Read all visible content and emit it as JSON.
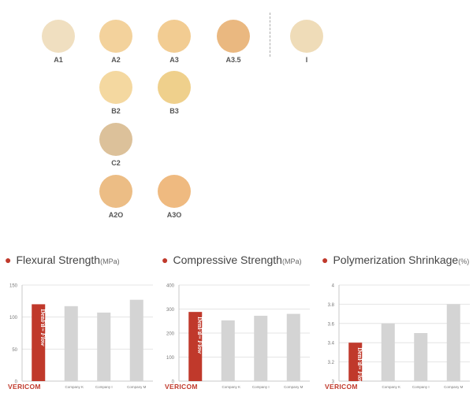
{
  "shades": [
    {
      "label": "A1",
      "color": "#f0dfc0",
      "col": 0,
      "row": 0
    },
    {
      "label": "A2",
      "color": "#f3d29c",
      "col": 1,
      "row": 0
    },
    {
      "label": "A3",
      "color": "#f2cc92",
      "col": 2,
      "row": 0
    },
    {
      "label": "A3.5",
      "color": "#eab880",
      "col": 3,
      "row": 0
    },
    {
      "label": "I",
      "color": "#efdcb8",
      "col": 4,
      "row": 0
    },
    {
      "label": "B2",
      "color": "#f4d8a0",
      "col": 1,
      "row": 1
    },
    {
      "label": "B3",
      "color": "#efd08c",
      "col": 2,
      "row": 1
    },
    {
      "label": "C2",
      "color": "#dcc19a",
      "col": 1,
      "row": 2
    },
    {
      "label": "A2O",
      "color": "#ecbd85",
      "col": 1,
      "row": 3
    },
    {
      "label": "A3O",
      "color": "#efba80",
      "col": 2,
      "row": 3
    }
  ],
  "brand": {
    "logo": "VERICOM",
    "product": "DenFil",
    "product_tm": "™",
    "product_flow": "Flow",
    "accent": "#c0392b"
  },
  "colors": {
    "highlight_bar": "#c0392b",
    "bar": "#d4d4d4"
  },
  "chart_data": [
    {
      "type": "bar",
      "title": "Flexural Strength",
      "unit": "(MPa)",
      "categories": [
        "DenFil Flow",
        "Company K",
        "Company I",
        "Company M"
      ],
      "values": [
        120,
        117,
        107,
        127
      ],
      "ylim": [
        0,
        150
      ],
      "yticks": [
        0,
        50,
        100,
        150
      ],
      "ytick_labels": [
        "0",
        "50",
        "100",
        "150"
      ],
      "grid": true
    },
    {
      "type": "bar",
      "title": "Compressive Strength",
      "unit": "(MPa)",
      "categories": [
        "DenFil Flow",
        "Company K",
        "Company I",
        "Company M"
      ],
      "values": [
        288,
        253,
        272,
        280
      ],
      "ylim": [
        0,
        400
      ],
      "yticks": [
        0,
        100,
        200,
        300,
        400
      ],
      "ytick_labels": [
        "0",
        "100",
        "200",
        "300",
        "400"
      ],
      "grid": true
    },
    {
      "type": "bar",
      "title": "Polymerization Shrinkage",
      "unit": "(%)",
      "categories": [
        "DenFil Flow",
        "Company K",
        "Company I",
        "Company M"
      ],
      "values": [
        3.4,
        3.6,
        3.5,
        3.8
      ],
      "ylim": [
        3,
        4
      ],
      "yticks": [
        3,
        3.2,
        3.4,
        3.6,
        3.8,
        4
      ],
      "ytick_labels": [
        "3",
        "3.2",
        "3.4",
        "3.6",
        "3.8",
        "4"
      ],
      "grid": true
    }
  ]
}
